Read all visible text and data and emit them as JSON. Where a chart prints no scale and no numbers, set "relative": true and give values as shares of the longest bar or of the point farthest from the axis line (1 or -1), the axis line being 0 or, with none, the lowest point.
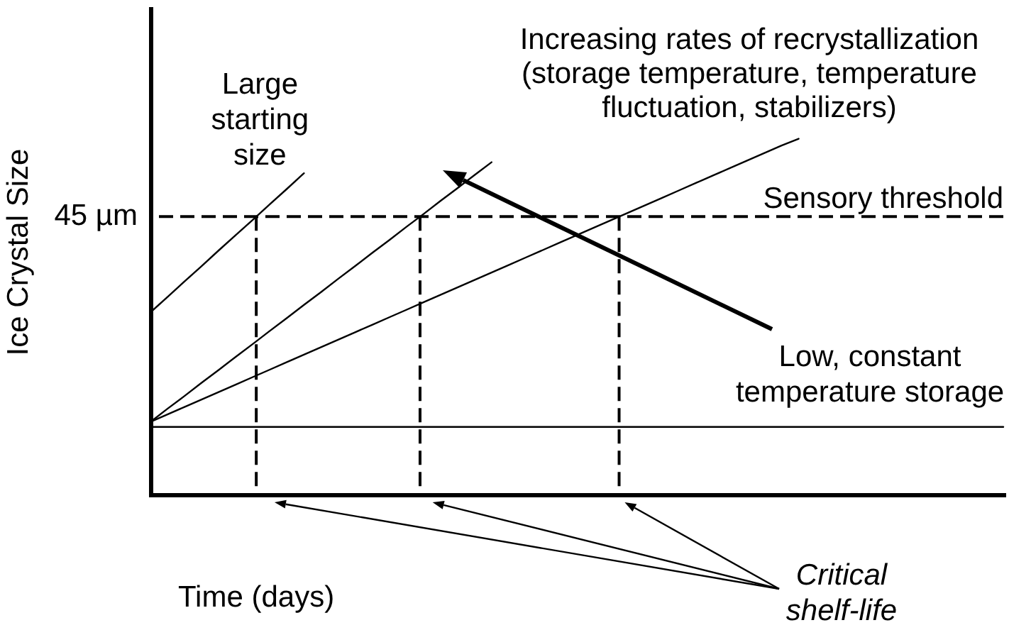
{
  "chart_data": {
    "type": "line",
    "relative": true,
    "xlabel": "Time (days)",
    "ylabel": "Ice Crystal Size",
    "marker": "none",
    "line_style": "solid",
    "categories": [
      null,
      null,
      null,
      null,
      null,
      null,
      null,
      null,
      null,
      null,
      null,
      null,
      null,
      null,
      null,
      null,
      null,
      null,
      null,
      null,
      null,
      null,
      null,
      null,
      null,
      null,
      null,
      null,
      null,
      null,
      null,
      null,
      null,
      null,
      null,
      null,
      null,
      null,
      null,
      null,
      null,
      null,
      null,
      null,
      null,
      null,
      null,
      null,
      null,
      null,
      null
    ],
    "series": [
      {
        "name": "Large starting size",
        "color": "#000000",
        "values": [
          0.512,
          0.555,
          0.599,
          0.642,
          0.686,
          0.729,
          0.772,
          0.816,
          0.859,
          0.903,
          null,
          null,
          null,
          null,
          null,
          null,
          null,
          null,
          null,
          null,
          null,
          null,
          null,
          null,
          null,
          null,
          null,
          null,
          null,
          null,
          null,
          null,
          null,
          null,
          null,
          null,
          null,
          null,
          null,
          null,
          null,
          null,
          null,
          null,
          null,
          null,
          null,
          null,
          null,
          null,
          null
        ]
      },
      {
        "color": "#000000",
        "values": [
          0.204,
          0.241,
          0.277,
          0.314,
          0.35,
          0.387,
          0.423,
          0.46,
          0.496,
          0.533,
          0.569,
          0.606,
          0.642,
          0.679,
          0.715,
          0.752,
          0.788,
          0.825,
          0.861,
          0.898,
          0.934,
          null,
          null,
          null,
          null,
          null,
          null,
          null,
          null,
          null,
          null,
          null,
          null,
          null,
          null,
          null,
          null,
          null,
          null,
          null,
          null,
          null,
          null,
          null,
          null,
          null,
          null,
          null,
          null,
          null,
          null
        ]
      },
      {
        "color": "#000000",
        "values": [
          0.204,
          0.225,
          0.246,
          0.267,
          0.288,
          0.309,
          0.33,
          0.351,
          0.372,
          0.393,
          0.414,
          0.435,
          0.456,
          0.477,
          0.498,
          0.519,
          0.54,
          0.561,
          0.582,
          0.603,
          0.624,
          0.645,
          0.666,
          0.687,
          0.708,
          0.729,
          0.75,
          0.771,
          0.792,
          0.813,
          0.834,
          0.855,
          0.876,
          0.897,
          0.918,
          0.939,
          0.96,
          0.981,
          1.0,
          null,
          null,
          null,
          null,
          null,
          null,
          null,
          null,
          null,
          null,
          null,
          null
        ]
      },
      {
        "name": "Low, constant temperature storage",
        "color": "#000000",
        "values": [
          0.19,
          0.19,
          0.19,
          0.19,
          0.19,
          0.19,
          0.19,
          0.19,
          0.19,
          0.19,
          0.19,
          0.19,
          0.19,
          0.19,
          0.19,
          0.19,
          0.19,
          0.19,
          0.19,
          0.19,
          0.19,
          0.19,
          0.19,
          0.19,
          0.19,
          0.19,
          0.19,
          0.19,
          0.19,
          0.19,
          0.19,
          0.19,
          0.19,
          0.19,
          0.19,
          0.19,
          0.19,
          0.19,
          0.19,
          0.19,
          0.19,
          0.19,
          0.19,
          0.19,
          0.19,
          0.19,
          0.19,
          0.19,
          0.19,
          0.19,
          0.19
        ]
      }
    ],
    "ref_lines": [
      {
        "axis": "y",
        "value": 0.781,
        "label": "Sensory threshold",
        "line_style": "dashed",
        "color": "#000000"
      }
    ],
    "annotations": [
      "Increasing rates of recrystallization (storage temperature, temperature fluctuation, stabilizers)",
      "45 µm",
      "Critical shelf-life"
    ]
  }
}
